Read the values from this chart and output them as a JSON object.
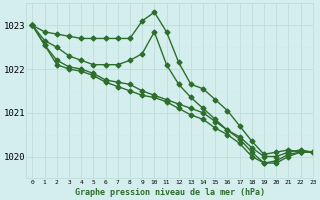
{
  "title": "Graphe pression niveau de la mer (hPa)",
  "bg_color": "#d4eeee",
  "grid_major_color": "#c0dcdc",
  "grid_minor_color": "#d0e8e8",
  "line_color": "#2d6e2d",
  "marker": "D",
  "markersize": 2.5,
  "linewidth": 1.0,
  "xlim": [
    -0.5,
    23
  ],
  "ylim": [
    1019.5,
    1023.5
  ],
  "yticks": [
    1020,
    1021,
    1022,
    1023
  ],
  "xticks": [
    0,
    1,
    2,
    3,
    4,
    5,
    6,
    7,
    8,
    9,
    10,
    11,
    12,
    13,
    14,
    15,
    16,
    17,
    18,
    19,
    20,
    21,
    22,
    23
  ],
  "series": [
    [
      1023.0,
      1022.85,
      1022.8,
      1022.75,
      1022.7,
      1022.7,
      1022.7,
      1022.7,
      1022.7,
      1023.1,
      1023.3,
      1022.85,
      1022.15,
      1021.65,
      1021.55,
      1021.3,
      1021.05,
      1020.7,
      1020.35,
      1020.05,
      1020.1,
      1020.15,
      1020.1,
      1020.1
    ],
    [
      1023.0,
      1022.65,
      1022.5,
      1022.3,
      1022.2,
      1022.1,
      1022.1,
      1022.1,
      1022.2,
      1022.35,
      1022.85,
      1022.1,
      1021.65,
      1021.35,
      1021.1,
      1020.85,
      1020.6,
      1020.45,
      1020.2,
      1020.0,
      1020.0,
      1020.1,
      1020.15,
      1020.1
    ],
    [
      1023.0,
      1022.55,
      1022.2,
      1022.05,
      1022.0,
      1021.9,
      1021.75,
      1021.7,
      1021.65,
      1021.5,
      1021.4,
      1021.3,
      1021.2,
      1021.1,
      1021.0,
      1020.8,
      1020.6,
      1020.4,
      1020.1,
      1019.85,
      1019.9,
      1020.05,
      1020.1,
      1020.1
    ],
    [
      1023.0,
      1022.55,
      1022.1,
      1022.0,
      1021.95,
      1021.85,
      1021.7,
      1021.6,
      1021.5,
      1021.4,
      1021.35,
      1021.25,
      1021.1,
      1020.95,
      1020.85,
      1020.65,
      1020.5,
      1020.3,
      1020.0,
      1019.85,
      1019.85,
      1020.0,
      1020.1,
      1020.1
    ]
  ]
}
